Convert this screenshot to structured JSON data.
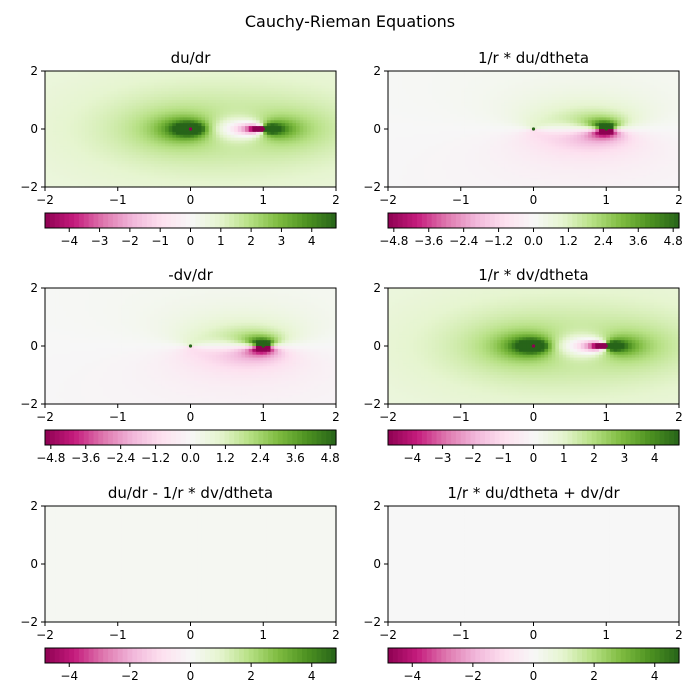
{
  "figure_title": "Cauchy-Rieman Equations",
  "colormap": [
    "#8e0152",
    "#c51b7d",
    "#de77ae",
    "#f1b6da",
    "#fde0ef",
    "#f7f7f7",
    "#e6f5d0",
    "#b8e186",
    "#7fbc41",
    "#4d9221",
    "#276419"
  ],
  "chart_data": [
    {
      "type": "heatmap",
      "title": "du/dr",
      "field": "du_dr",
      "x_ticks": [
        "−2",
        "−1",
        "0",
        "1",
        "2"
      ],
      "y_ticks": [
        "−2",
        "0",
        "2"
      ],
      "xlim": [
        -2,
        2
      ],
      "ylim": [
        -2,
        2
      ],
      "singularities": [
        [
          0,
          0
        ],
        [
          1,
          0
        ]
      ],
      "colorbar": {
        "range": [
          -4.8,
          4.8
        ],
        "ticks": [
          -4,
          -3,
          -2,
          -1,
          0,
          1,
          2,
          3,
          4
        ],
        "tick_labels": [
          "−4",
          "−3",
          "−2",
          "−1",
          "0",
          "1",
          "2",
          "3",
          "4"
        ]
      }
    },
    {
      "type": "heatmap",
      "title": "1/r * du/dtheta",
      "field": "du_dtheta",
      "x_ticks": [
        "−2",
        "−1",
        "0",
        "1",
        "2"
      ],
      "y_ticks": [
        "−2",
        "0",
        "2"
      ],
      "xlim": [
        -2,
        2
      ],
      "ylim": [
        -2,
        2
      ],
      "singularities": [
        [
          0,
          0
        ],
        [
          1,
          0
        ]
      ],
      "colorbar": {
        "range": [
          -5.0,
          5.0
        ],
        "ticks": [
          -4.8,
          -3.6,
          -2.4,
          -1.2,
          0.0,
          1.2,
          2.4,
          3.6,
          4.8
        ],
        "tick_labels": [
          "−4.8",
          "−3.6",
          "−2.4",
          "−1.2",
          "0.0",
          "1.2",
          "2.4",
          "3.6",
          "4.8"
        ]
      }
    },
    {
      "type": "heatmap",
      "title": "-dv/dr",
      "field": "du_dtheta",
      "x_ticks": [
        "−2",
        "−1",
        "0",
        "1",
        "2"
      ],
      "y_ticks": [
        "−2",
        "0",
        "2"
      ],
      "xlim": [
        -2,
        2
      ],
      "ylim": [
        -2,
        2
      ],
      "singularities": [
        [
          0,
          0
        ],
        [
          1,
          0
        ]
      ],
      "colorbar": {
        "range": [
          -5.0,
          5.0
        ],
        "ticks": [
          -4.8,
          -3.6,
          -2.4,
          -1.2,
          0.0,
          1.2,
          2.4,
          3.6,
          4.8
        ],
        "tick_labels": [
          "−4.8",
          "−3.6",
          "−2.4",
          "−1.2",
          "0.0",
          "1.2",
          "2.4",
          "3.6",
          "4.8"
        ]
      }
    },
    {
      "type": "heatmap",
      "title": "1/r * dv/dtheta",
      "field": "du_dr",
      "x_ticks": [
        "−2",
        "−1",
        "0",
        "1",
        "2"
      ],
      "y_ticks": [
        "−2",
        "0",
        "2"
      ],
      "xlim": [
        -2,
        2
      ],
      "ylim": [
        -2,
        2
      ],
      "singularities": [
        [
          0,
          0
        ],
        [
          1,
          0
        ]
      ],
      "colorbar": {
        "range": [
          -4.8,
          4.8
        ],
        "ticks": [
          -4,
          -3,
          -2,
          -1,
          0,
          1,
          2,
          3,
          4
        ],
        "tick_labels": [
          "−4",
          "−3",
          "−2",
          "−1",
          "0",
          "1",
          "2",
          "3",
          "4"
        ]
      }
    },
    {
      "type": "heatmap",
      "title": "du/dr - 1/r * dv/dtheta",
      "field": "zero_green",
      "x_ticks": [
        "−2",
        "−1",
        "0",
        "1",
        "2"
      ],
      "y_ticks": [
        "−2",
        "0",
        "2"
      ],
      "xlim": [
        -2,
        2
      ],
      "ylim": [
        -2,
        2
      ],
      "singularities": [],
      "colorbar": {
        "range": [
          -4.8,
          4.8
        ],
        "ticks": [
          -4,
          -2,
          0,
          2,
          4
        ],
        "tick_labels": [
          "−4",
          "−2",
          "0",
          "2",
          "4"
        ]
      }
    },
    {
      "type": "heatmap",
      "title": "1/r * du/dtheta + dv/dr",
      "field": "zero",
      "x_ticks": [
        "−2",
        "−1",
        "0",
        "1",
        "2"
      ],
      "y_ticks": [
        "−2",
        "0",
        "2"
      ],
      "xlim": [
        -2,
        2
      ],
      "ylim": [
        -2,
        2
      ],
      "singularities": [],
      "colorbar": {
        "range": [
          -4.8,
          4.8
        ],
        "ticks": [
          -4,
          -2,
          0,
          2,
          4
        ],
        "tick_labels": [
          "−4",
          "−2",
          "0",
          "2",
          "4"
        ]
      }
    }
  ]
}
